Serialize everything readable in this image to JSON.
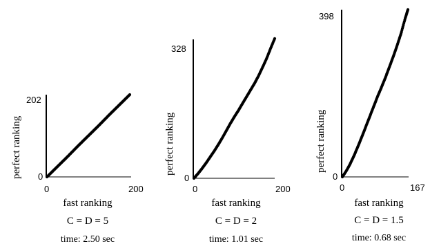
{
  "chart_data": [
    {
      "type": "scatter",
      "xlabel": "fast ranking",
      "ylabel": "perfect ranking",
      "xlim": [
        0,
        200
      ],
      "ylim": [
        0,
        202
      ],
      "x_ticks": [
        "0",
        "200"
      ],
      "y_ticks": [
        "0",
        "202"
      ],
      "caption": "C = D = 5",
      "time": "time: 2.50 sec",
      "series": [
        {
          "x": [
            0,
            25,
            50,
            75,
            100,
            125,
            150,
            175,
            200
          ],
          "y": [
            0,
            25,
            50,
            76,
            101,
            126,
            152,
            177,
            202
          ]
        }
      ]
    },
    {
      "type": "scatter",
      "xlabel": "fast ranking",
      "ylabel": "perfect ranking",
      "xlim": [
        0,
        200
      ],
      "ylim": [
        0,
        328
      ],
      "x_ticks": [
        "0",
        "200"
      ],
      "y_ticks": [
        "0",
        "328"
      ],
      "caption": "C = D = 2",
      "time": "time: 1.01 sec",
      "series": [
        {
          "x": [
            0,
            10,
            20,
            30,
            40,
            50,
            60,
            70,
            80,
            90,
            100,
            110,
            120,
            130,
            140,
            150,
            160,
            170,
            180,
            190,
            200
          ],
          "y": [
            0,
            11,
            23,
            36,
            50,
            64,
            79,
            95,
            112,
            129,
            145,
            160,
            176,
            192,
            208,
            224,
            242,
            262,
            283,
            307,
            330
          ]
        }
      ]
    },
    {
      "type": "scatter",
      "xlabel": "fast ranking",
      "ylabel": "perfect ranking",
      "xlim": [
        0,
        167
      ],
      "ylim": [
        0,
        398
      ],
      "x_ticks": [
        "0",
        "167"
      ],
      "y_ticks": [
        "0",
        "398"
      ],
      "caption": "C = D = 1.5",
      "time": "time: 0.68 sec",
      "series": [
        {
          "x": [
            0,
            10,
            20,
            30,
            40,
            50,
            60,
            70,
            80,
            90,
            100,
            110,
            120,
            130,
            140,
            150,
            160,
            167
          ],
          "y": [
            0,
            14,
            31,
            51,
            73,
            96,
            120,
            144,
            168,
            192,
            214,
            237,
            262,
            287,
            314,
            343,
            377,
            398
          ]
        }
      ]
    }
  ]
}
